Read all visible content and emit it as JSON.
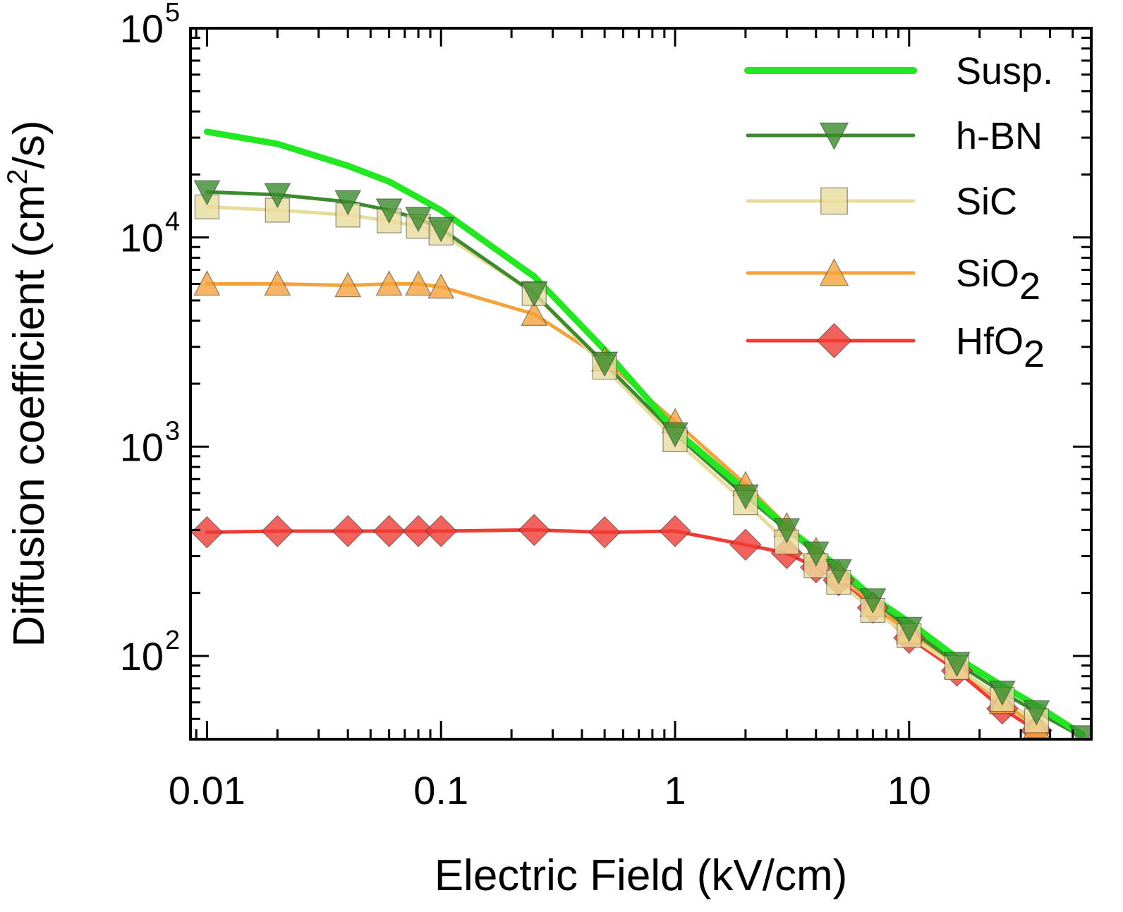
{
  "chart_data": {
    "type": "line",
    "xlabel": "Electric Field (kV/cm)",
    "ylabel": {
      "prefix": "Diffusion coefficient (cm",
      "sup": "2",
      "suffix": "/s)"
    },
    "xscale": "log",
    "yscale": "log",
    "xlim": [
      0.0085,
      60
    ],
    "ylim": [
      40,
      100000
    ],
    "xticks": [
      {
        "value": 0.01,
        "label": "0.01"
      },
      {
        "value": 0.1,
        "label": "0.1"
      },
      {
        "value": 1,
        "label": "1"
      },
      {
        "value": 10,
        "label": "10"
      }
    ],
    "yticks": [
      {
        "value": 100,
        "base": "10",
        "exp": "2"
      },
      {
        "value": 1000,
        "base": "10",
        "exp": "3"
      },
      {
        "value": 10000,
        "base": "10",
        "exp": "4"
      },
      {
        "value": 100000,
        "base": "10",
        "exp": "5"
      }
    ],
    "legend_position": "top-right",
    "series": [
      {
        "name": "Susp.",
        "key": "susp",
        "color": "#22e822",
        "marker": "none",
        "x": [
          0.01,
          0.02,
          0.04,
          0.06,
          0.08,
          0.1,
          0.25,
          0.5,
          1,
          2,
          3,
          4,
          5,
          7,
          10,
          16,
          25,
          35,
          55
        ],
        "y": [
          32000,
          28000,
          22000,
          18500,
          15500,
          13500,
          6500,
          2900,
          1200,
          620,
          410,
          320,
          265,
          190,
          145,
          98,
          72,
          58,
          42
        ]
      },
      {
        "name": "h-BN",
        "key": "hbn",
        "color": "#3a8c2c",
        "marker": "triangle-down",
        "x": [
          0.01,
          0.02,
          0.04,
          0.06,
          0.08,
          0.1,
          0.25,
          0.5,
          1,
          2,
          3,
          4,
          5,
          7,
          10,
          16,
          25,
          35,
          55
        ],
        "y": [
          16500,
          16000,
          14800,
          13500,
          12300,
          11000,
          5400,
          2500,
          1150,
          580,
          400,
          310,
          255,
          185,
          135,
          92,
          67,
          54,
          41
        ]
      },
      {
        "name": "SiC",
        "key": "sic",
        "color": "#e8dc9c",
        "marker": "square",
        "x": [
          0.01,
          0.02,
          0.04,
          0.06,
          0.08,
          0.1,
          0.25,
          0.5,
          1,
          2,
          3,
          4,
          5,
          7,
          10,
          16,
          25,
          35
        ],
        "y": [
          14000,
          13500,
          12800,
          12000,
          11300,
          10500,
          5400,
          2400,
          1080,
          540,
          350,
          270,
          225,
          165,
          125,
          88,
          62,
          49
        ]
      },
      {
        "name": "SiO",
        "name_sub": "2",
        "key": "sio2",
        "color": "#f5a23c",
        "marker": "triangle-up",
        "x": [
          0.01,
          0.02,
          0.04,
          0.06,
          0.08,
          0.1,
          0.25,
          0.5,
          1,
          2,
          3,
          4,
          5,
          7,
          10,
          16,
          25,
          35
        ],
        "y": [
          6000,
          6000,
          5900,
          6000,
          6000,
          5800,
          4300,
          2600,
          1320,
          660,
          420,
          320,
          250,
          175,
          130,
          88,
          60,
          46
        ]
      },
      {
        "name": "HfO",
        "name_sub": "2",
        "key": "hfo2",
        "color": "#f03c34",
        "marker": "diamond",
        "x": [
          0.01,
          0.02,
          0.04,
          0.06,
          0.08,
          0.1,
          0.25,
          0.5,
          1,
          2,
          3,
          4,
          5,
          7,
          10,
          16,
          25,
          35
        ],
        "y": [
          390,
          395,
          395,
          395,
          395,
          395,
          400,
          390,
          395,
          340,
          310,
          265,
          230,
          170,
          122,
          85,
          56,
          44
        ]
      }
    ]
  }
}
